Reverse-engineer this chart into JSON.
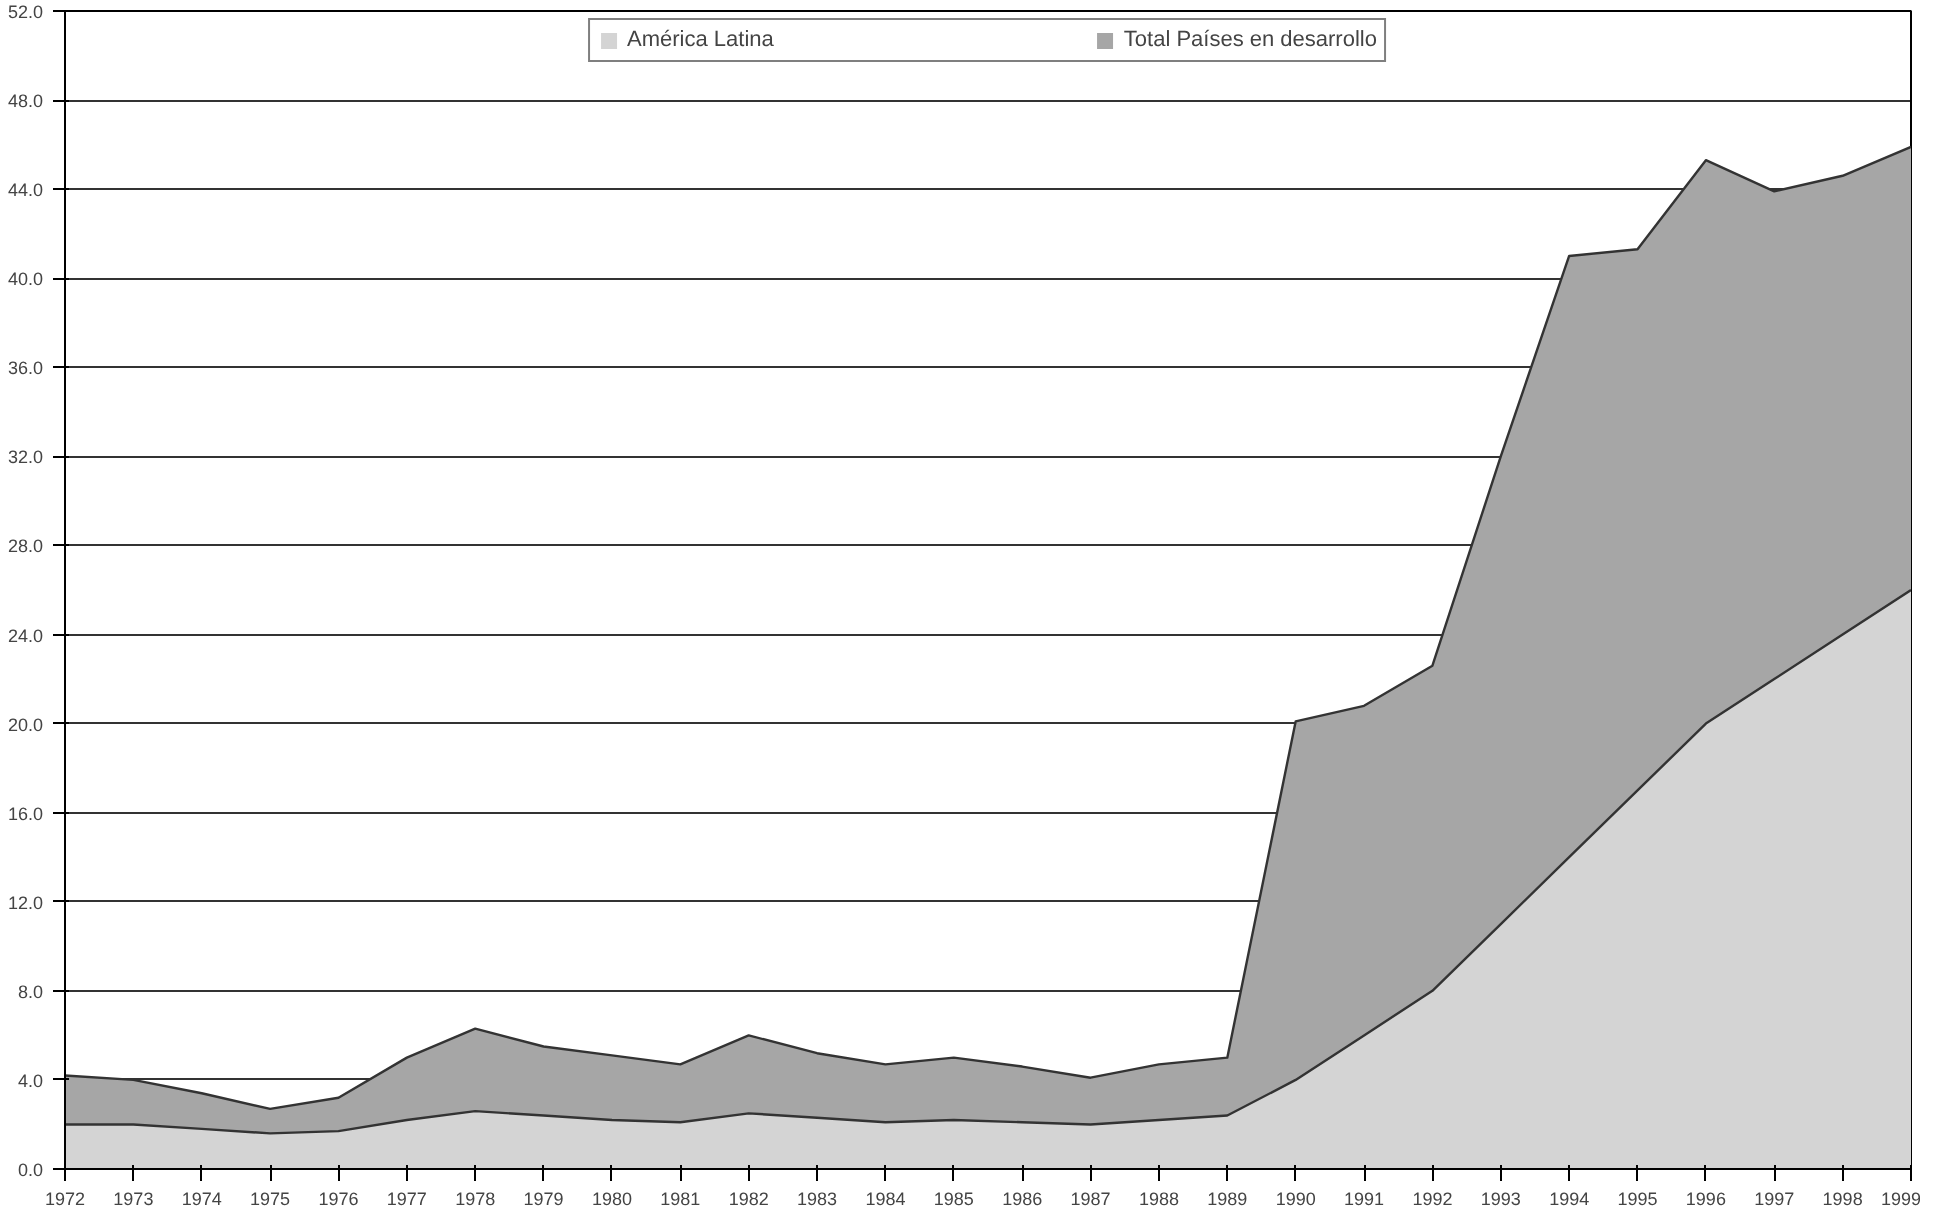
{
  "chart_data": {
    "type": "area",
    "categories": [
      "1972",
      "1973",
      "1974",
      "1975",
      "1976",
      "1977",
      "1978",
      "1979",
      "1980",
      "1981",
      "1982",
      "1983",
      "1984",
      "1985",
      "1986",
      "1987",
      "1988",
      "1989",
      "1990",
      "1991",
      "1992",
      "1993",
      "1994",
      "1995",
      "1996",
      "1997",
      "1998",
      "1999"
    ],
    "series": [
      {
        "name": "América Latina",
        "color": "#d4d4d4",
        "values": [
          2.0,
          2.0,
          1.8,
          1.6,
          1.7,
          2.2,
          2.6,
          2.4,
          2.2,
          2.1,
          2.5,
          2.3,
          2.1,
          2.2,
          2.1,
          2.0,
          2.2,
          2.4,
          4.0,
          6.0,
          8.0,
          11.0,
          14.0,
          17.0,
          20.0,
          22.0,
          24.0,
          26.0
        ]
      },
      {
        "name": "Total Países en desarrollo",
        "color": "#a6a6a6",
        "values": [
          4.2,
          4.0,
          3.4,
          2.7,
          3.2,
          5.0,
          6.3,
          5.5,
          5.1,
          4.7,
          6.0,
          5.2,
          4.7,
          5.0,
          4.6,
          4.1,
          4.7,
          5.0,
          20.1,
          20.8,
          22.6,
          32.0,
          41.0,
          41.3,
          45.3,
          43.9,
          44.6,
          45.9
        ]
      }
    ],
    "ylim": [
      0,
      52
    ],
    "yticks": [
      {
        "value": 0,
        "label": "0.0"
      },
      {
        "value": 4,
        "label": "4.0"
      },
      {
        "value": 8,
        "label": "8.0"
      },
      {
        "value": 12,
        "label": "12.0"
      },
      {
        "value": 16,
        "label": "16.0"
      },
      {
        "value": 20,
        "label": "20.0"
      },
      {
        "value": 24,
        "label": "24.0"
      },
      {
        "value": 28,
        "label": "28.0"
      },
      {
        "value": 32,
        "label": "32.0"
      },
      {
        "value": 36,
        "label": "36.0"
      },
      {
        "value": 40,
        "label": "40.0"
      },
      {
        "value": 44,
        "label": "44.0"
      },
      {
        "value": 48,
        "label": "48.0"
      },
      {
        "value": 52,
        "label": "52.0"
      }
    ],
    "grid": "y",
    "legend": "top"
  }
}
